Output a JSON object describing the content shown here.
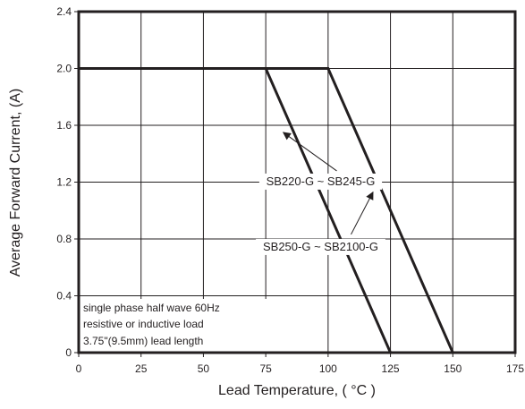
{
  "chart_data": {
    "type": "line",
    "title": "",
    "xlabel": "Lead Temperature, ( °C )",
    "ylabel": "Average Forward Current, (A)",
    "xlim": [
      0,
      175
    ],
    "ylim": [
      0,
      2.4
    ],
    "x_ticks": [
      "0",
      "25",
      "50",
      "75",
      "100",
      "125",
      "150",
      "175"
    ],
    "y_ticks": [
      "0",
      "0.4",
      "0.8",
      "1.2",
      "1.6",
      "2.0",
      "2.4"
    ],
    "grid": true,
    "series": [
      {
        "name": "SB220-G ~ SB245-G",
        "x": [
          0,
          75,
          125
        ],
        "y": [
          2.0,
          2.0,
          0
        ]
      },
      {
        "name": "SB250-G ~ SB2100-G",
        "x": [
          0,
          100,
          150
        ],
        "y": [
          2.0,
          2.0,
          0
        ]
      }
    ],
    "annotations": [
      {
        "text": "SB220-G ~ SB245-G",
        "x": 97,
        "y": 1.21,
        "arrow_to": [
          82,
          1.55
        ]
      },
      {
        "text": "SB250-G ~ SB2100-G",
        "x": 97,
        "y": 0.75,
        "arrow_to": [
          118,
          1.13
        ]
      }
    ],
    "notes": [
      "single phase half wave 60Hz",
      "resistive or inductive load",
      "3.75\"(9.5mm) lead length"
    ]
  }
}
